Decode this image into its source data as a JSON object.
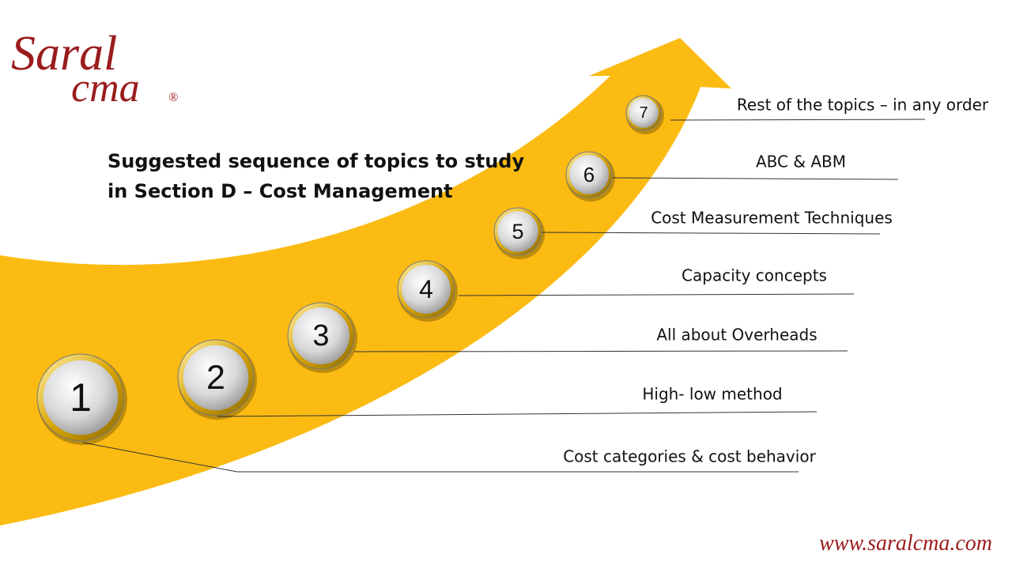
{
  "logo": {
    "line1": "Saral",
    "line2": "cma",
    "mark": "®"
  },
  "title": {
    "line1": "Suggested sequence of topics to study",
    "line2": "in Section D – Cost Management"
  },
  "steps": [
    {
      "number": "1",
      "label": "Cost categories & cost behavior"
    },
    {
      "number": "2",
      "label": "High- low method"
    },
    {
      "number": "3",
      "label": "All about Overheads"
    },
    {
      "number": "4",
      "label": "Capacity concepts"
    },
    {
      "number": "5",
      "label": "Cost Measurement Techniques"
    },
    {
      "number": "6",
      "label": "ABC & ABM"
    },
    {
      "number": "7",
      "label": "Rest of the topics – in any order"
    }
  ],
  "footer": {
    "url": "www.saralcma.com"
  }
}
